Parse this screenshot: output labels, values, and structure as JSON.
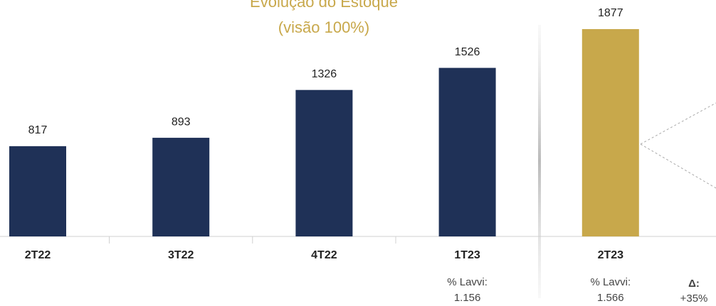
{
  "chart_data": {
    "type": "bar",
    "title": "Evolução do Estoque",
    "subtitle": "(visão 100%)",
    "categories": [
      "2T22",
      "3T22",
      "4T22",
      "1T23",
      "2T23"
    ],
    "values": [
      817,
      893,
      1326,
      1526,
      1877
    ],
    "colors": [
      "#1f3157",
      "#1f3157",
      "#1f3157",
      "#1f3157",
      "#c8a84b"
    ],
    "annotations": [
      {
        "category": "1T23",
        "label": "% Lavvi:",
        "text": "1.156"
      },
      {
        "category": "2T23",
        "label": "% Lavvi:",
        "text": "1.566"
      }
    ],
    "delta": {
      "label": "Δ:",
      "text": "+35%"
    }
  }
}
